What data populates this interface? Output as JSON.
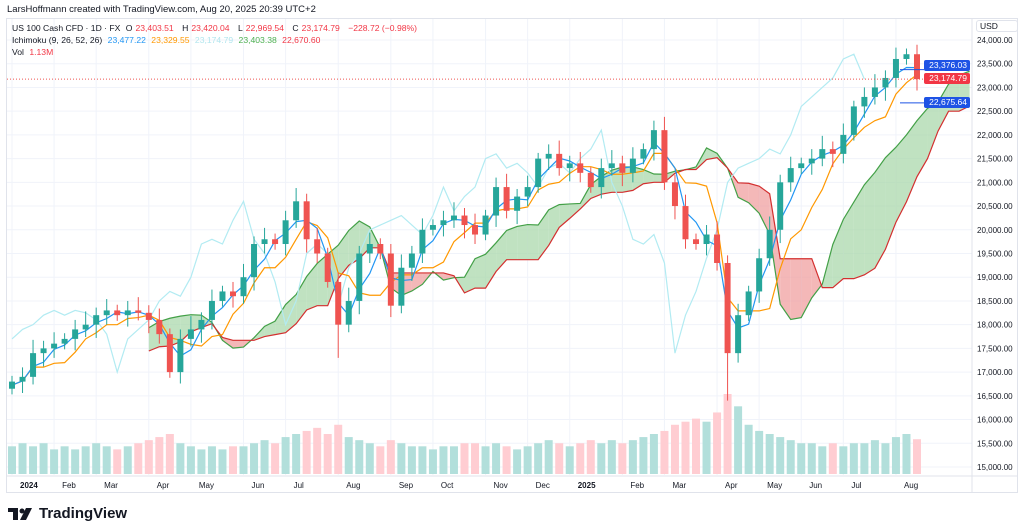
{
  "credit": "LarsHoffmann created with TradingView.com, Aug 20, 2025 20:39 UTC+2",
  "legend": {
    "symbol": "US 100 Cash CFD · 1D · FX",
    "o_label": "O",
    "o": "23,403.51",
    "h_label": "H",
    "h": "23,420.04",
    "l_label": "L",
    "l": "22,969.54",
    "c_label": "C",
    "c": "23,174.79",
    "change": "−228.72 (−0.98%)",
    "ichimoku_label": "Ichimoku (9, 26, 52, 26)",
    "ich": [
      "23,477.22",
      "23,329.55",
      "23,174.79",
      "23,403.38",
      "22,670.60"
    ],
    "vol_label": "Vol",
    "vol": "1.13M"
  },
  "currency": "USD",
  "price_labels": {
    "line1": "23,376.03",
    "last": "23,174.79",
    "line2": "22,675.64"
  },
  "brand": "TradingView",
  "colors": {
    "up": "#26a69a",
    "down": "#ef5350",
    "tenkan": "#2196f3",
    "kijun": "#ff9800",
    "chikou": "#b2ebf2",
    "spanA": "#43a047",
    "spanB": "#d32f2f",
    "cloudUp": "#a5d6a7",
    "cloudDown": "#ef9a9a",
    "badgeBlue": "#1e53e5",
    "badgeRed": "#f23645"
  },
  "chart_data": {
    "type": "candlestick",
    "title": "US 100 Cash CFD · 1D · FX",
    "ylabel": "USD",
    "ylim": [
      15000,
      24000
    ],
    "y_ticks": [
      "24,000.00",
      "23,500.00",
      "23,000.00",
      "22,500.00",
      "22,000.00",
      "21,500.00",
      "21,000.00",
      "20,500.00",
      "20,000.00",
      "19,500.00",
      "19,000.00",
      "18,500.00",
      "18,000.00",
      "17,500.00",
      "17,000.00",
      "16,500.00",
      "16,000.00",
      "15,500.00",
      "15,000.00"
    ],
    "y_tick_values": [
      24000,
      23500,
      23000,
      22500,
      22000,
      21500,
      21000,
      20500,
      20000,
      19500,
      19000,
      18500,
      18000,
      17500,
      17000,
      16500,
      16000,
      15500,
      15000
    ],
    "x_ticks": [
      "2024",
      "Feb",
      "Mar",
      "Apr",
      "May",
      "Jun",
      "Jul",
      "Aug",
      "Sep",
      "Oct",
      "Nov",
      "Dec",
      "2025",
      "Feb",
      "Mar",
      "Apr",
      "May",
      "Jun",
      "Jul",
      "Aug"
    ],
    "x_tick_week_index": [
      0,
      4,
      8,
      13,
      17,
      22,
      26,
      31,
      36,
      40,
      45,
      49,
      53,
      58,
      62,
      67,
      71,
      75,
      79,
      84
    ],
    "weekly_close": [
      16800,
      16900,
      17400,
      17500,
      17600,
      17700,
      17900,
      18000,
      18200,
      18300,
      18200,
      18300,
      18250,
      18100,
      17800,
      17000,
      17700,
      17900,
      18100,
      18500,
      18700,
      18600,
      19000,
      19700,
      19800,
      19700,
      20200,
      20600,
      19800,
      19500,
      18900,
      18000,
      18500,
      19500,
      19700,
      19500,
      18400,
      19200,
      19500,
      20000,
      20100,
      20200,
      20300,
      20100,
      19900,
      20300,
      20900,
      20400,
      20700,
      20900,
      21500,
      21600,
      21300,
      21400,
      21200,
      20900,
      21300,
      21400,
      21200,
      21500,
      21700,
      22100,
      21000,
      20500,
      19800,
      19700,
      19900,
      19300,
      17400,
      18200,
      18700,
      19400,
      20000,
      21000,
      21300,
      21400,
      21500,
      21700,
      21600,
      22000,
      22600,
      22800,
      23000,
      23200,
      23600,
      23700,
      23175
    ],
    "weekly_volume": [
      0.9,
      1.0,
      0.9,
      1.0,
      0.8,
      0.9,
      0.8,
      0.9,
      1.0,
      0.9,
      0.8,
      0.9,
      1.0,
      1.1,
      1.2,
      1.3,
      1.0,
      0.9,
      0.8,
      0.9,
      0.8,
      0.9,
      0.9,
      1.0,
      1.1,
      1.0,
      1.2,
      1.3,
      1.4,
      1.5,
      1.3,
      1.6,
      1.2,
      1.1,
      1.0,
      0.9,
      1.1,
      1.0,
      0.9,
      0.9,
      0.8,
      0.9,
      0.9,
      1.0,
      1.0,
      0.9,
      1.0,
      0.9,
      0.8,
      0.9,
      1.0,
      1.1,
      1.0,
      0.9,
      1.0,
      1.1,
      1.0,
      1.1,
      1.0,
      1.1,
      1.2,
      1.3,
      1.4,
      1.6,
      1.7,
      1.8,
      1.7,
      2.0,
      2.6,
      2.2,
      1.6,
      1.4,
      1.3,
      1.2,
      1.1,
      1.0,
      1.0,
      0.9,
      1.0,
      0.9,
      1.0,
      1.0,
      1.1,
      1.0,
      1.2,
      1.3,
      1.13
    ]
  }
}
